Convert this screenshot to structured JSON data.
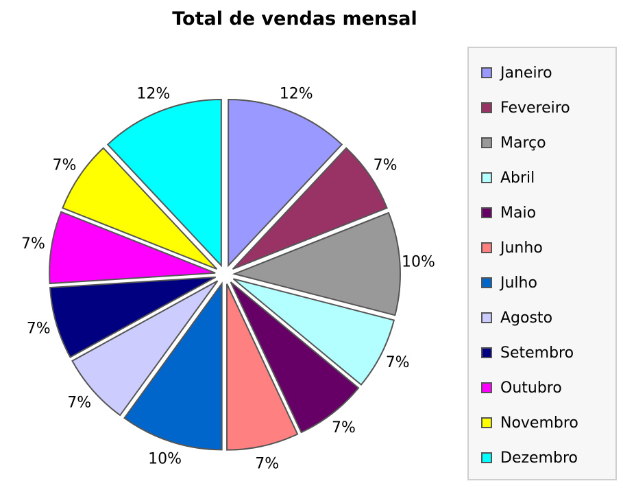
{
  "chart_data": {
    "type": "pie",
    "title": "Total de vendas mensal",
    "legend_position": "right",
    "slices": [
      {
        "name": "Janeiro",
        "percent": 12,
        "label": "12%",
        "color": "#9999ff"
      },
      {
        "name": "Fevereiro",
        "percent": 7,
        "label": "7%",
        "color": "#993366"
      },
      {
        "name": "Março",
        "percent": 10,
        "label": "10%",
        "color": "#999999"
      },
      {
        "name": "Abril",
        "percent": 7,
        "label": "7%",
        "color": "#b3ffff"
      },
      {
        "name": "Maio",
        "percent": 7,
        "label": "7%",
        "color": "#660066"
      },
      {
        "name": "Junho",
        "percent": 7,
        "label": "7%",
        "color": "#ff8080"
      },
      {
        "name": "Julho",
        "percent": 10,
        "label": "10%",
        "color": "#0066cc"
      },
      {
        "name": "Agosto",
        "percent": 7,
        "label": "7%",
        "color": "#ccccff"
      },
      {
        "name": "Setembro",
        "percent": 7,
        "label": "7%",
        "color": "#000080"
      },
      {
        "name": "Outubro",
        "percent": 7,
        "label": "7%",
        "color": "#ff00ff"
      },
      {
        "name": "Novembro",
        "percent": 7,
        "label": "7%",
        "color": "#ffff00"
      },
      {
        "name": "Dezembro",
        "percent": 12,
        "label": "12%",
        "color": "#00ffff"
      }
    ]
  }
}
